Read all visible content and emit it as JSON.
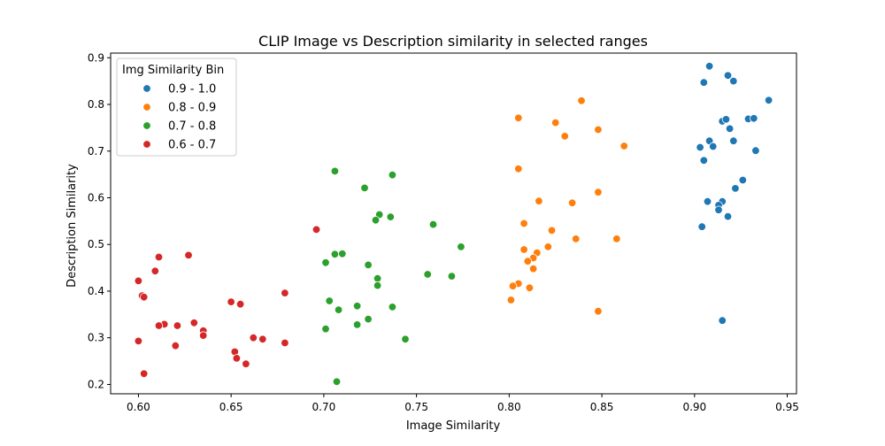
{
  "chart_data": {
    "type": "scatter",
    "title": "CLIP Image vs Description similarity in selected ranges",
    "xlabel": "Image Similarity",
    "ylabel": "Description Similarity",
    "xlim": [
      0.585,
      0.955
    ],
    "ylim": [
      0.18,
      0.91
    ],
    "xticks": [
      0.6,
      0.65,
      0.7,
      0.75,
      0.8,
      0.85,
      0.9,
      0.95
    ],
    "xtick_labels": [
      "0.60",
      "0.65",
      "0.70",
      "0.75",
      "0.80",
      "0.85",
      "0.90",
      "0.95"
    ],
    "yticks": [
      0.2,
      0.3,
      0.4,
      0.5,
      0.6,
      0.7,
      0.8,
      0.9
    ],
    "ytick_labels": [
      "0.2",
      "0.3",
      "0.4",
      "0.5",
      "0.6",
      "0.7",
      "0.8",
      "0.9"
    ],
    "grid": false,
    "legend": {
      "title": "Img Similarity Bin",
      "placement": "top-left"
    },
    "series": [
      {
        "name": "0.9 - 1.0",
        "color": "#1f77b4",
        "points": [
          [
            0.908,
            0.882
          ],
          [
            0.918,
            0.862
          ],
          [
            0.921,
            0.85
          ],
          [
            0.905,
            0.847
          ],
          [
            0.94,
            0.809
          ],
          [
            0.915,
            0.764
          ],
          [
            0.917,
            0.768
          ],
          [
            0.929,
            0.769
          ],
          [
            0.932,
            0.77
          ],
          [
            0.919,
            0.748
          ],
          [
            0.908,
            0.722
          ],
          [
            0.921,
            0.722
          ],
          [
            0.903,
            0.708
          ],
          [
            0.91,
            0.71
          ],
          [
            0.933,
            0.701
          ],
          [
            0.905,
            0.68
          ],
          [
            0.926,
            0.638
          ],
          [
            0.922,
            0.62
          ],
          [
            0.907,
            0.592
          ],
          [
            0.915,
            0.592
          ],
          [
            0.913,
            0.584
          ],
          [
            0.913,
            0.574
          ],
          [
            0.918,
            0.56
          ],
          [
            0.904,
            0.538
          ],
          [
            0.915,
            0.337
          ]
        ]
      },
      {
        "name": "0.8 - 0.9",
        "color": "#ff7f0e",
        "points": [
          [
            0.839,
            0.808
          ],
          [
            0.805,
            0.771
          ],
          [
            0.825,
            0.761
          ],
          [
            0.848,
            0.746
          ],
          [
            0.83,
            0.732
          ],
          [
            0.862,
            0.711
          ],
          [
            0.805,
            0.662
          ],
          [
            0.848,
            0.612
          ],
          [
            0.816,
            0.593
          ],
          [
            0.834,
            0.589
          ],
          [
            0.808,
            0.545
          ],
          [
            0.823,
            0.53
          ],
          [
            0.836,
            0.512
          ],
          [
            0.858,
            0.512
          ],
          [
            0.821,
            0.495
          ],
          [
            0.808,
            0.489
          ],
          [
            0.815,
            0.482
          ],
          [
            0.813,
            0.471
          ],
          [
            0.81,
            0.464
          ],
          [
            0.813,
            0.448
          ],
          [
            0.805,
            0.416
          ],
          [
            0.802,
            0.411
          ],
          [
            0.811,
            0.407
          ],
          [
            0.801,
            0.381
          ],
          [
            0.848,
            0.357
          ]
        ]
      },
      {
        "name": "0.7 - 0.8",
        "color": "#2ca02c",
        "points": [
          [
            0.706,
            0.657
          ],
          [
            0.737,
            0.649
          ],
          [
            0.722,
            0.621
          ],
          [
            0.73,
            0.564
          ],
          [
            0.736,
            0.559
          ],
          [
            0.728,
            0.552
          ],
          [
            0.759,
            0.543
          ],
          [
            0.774,
            0.495
          ],
          [
            0.706,
            0.479
          ],
          [
            0.71,
            0.48
          ],
          [
            0.701,
            0.461
          ],
          [
            0.724,
            0.456
          ],
          [
            0.756,
            0.436
          ],
          [
            0.769,
            0.432
          ],
          [
            0.729,
            0.427
          ],
          [
            0.729,
            0.412
          ],
          [
            0.703,
            0.379
          ],
          [
            0.718,
            0.368
          ],
          [
            0.737,
            0.366
          ],
          [
            0.708,
            0.36
          ],
          [
            0.724,
            0.34
          ],
          [
            0.718,
            0.328
          ],
          [
            0.701,
            0.319
          ],
          [
            0.744,
            0.297
          ],
          [
            0.707,
            0.206
          ]
        ]
      },
      {
        "name": "0.6 - 0.7",
        "color": "#d62728",
        "points": [
          [
            0.696,
            0.532
          ],
          [
            0.627,
            0.477
          ],
          [
            0.611,
            0.473
          ],
          [
            0.609,
            0.443
          ],
          [
            0.6,
            0.422
          ],
          [
            0.679,
            0.396
          ],
          [
            0.602,
            0.39
          ],
          [
            0.603,
            0.387
          ],
          [
            0.65,
            0.377
          ],
          [
            0.655,
            0.372
          ],
          [
            0.63,
            0.332
          ],
          [
            0.614,
            0.329
          ],
          [
            0.611,
            0.326
          ],
          [
            0.621,
            0.326
          ],
          [
            0.635,
            0.315
          ],
          [
            0.635,
            0.305
          ],
          [
            0.662,
            0.3
          ],
          [
            0.667,
            0.297
          ],
          [
            0.6,
            0.293
          ],
          [
            0.679,
            0.289
          ],
          [
            0.62,
            0.283
          ],
          [
            0.652,
            0.27
          ],
          [
            0.653,
            0.256
          ],
          [
            0.658,
            0.244
          ],
          [
            0.603,
            0.223
          ]
        ]
      }
    ]
  }
}
